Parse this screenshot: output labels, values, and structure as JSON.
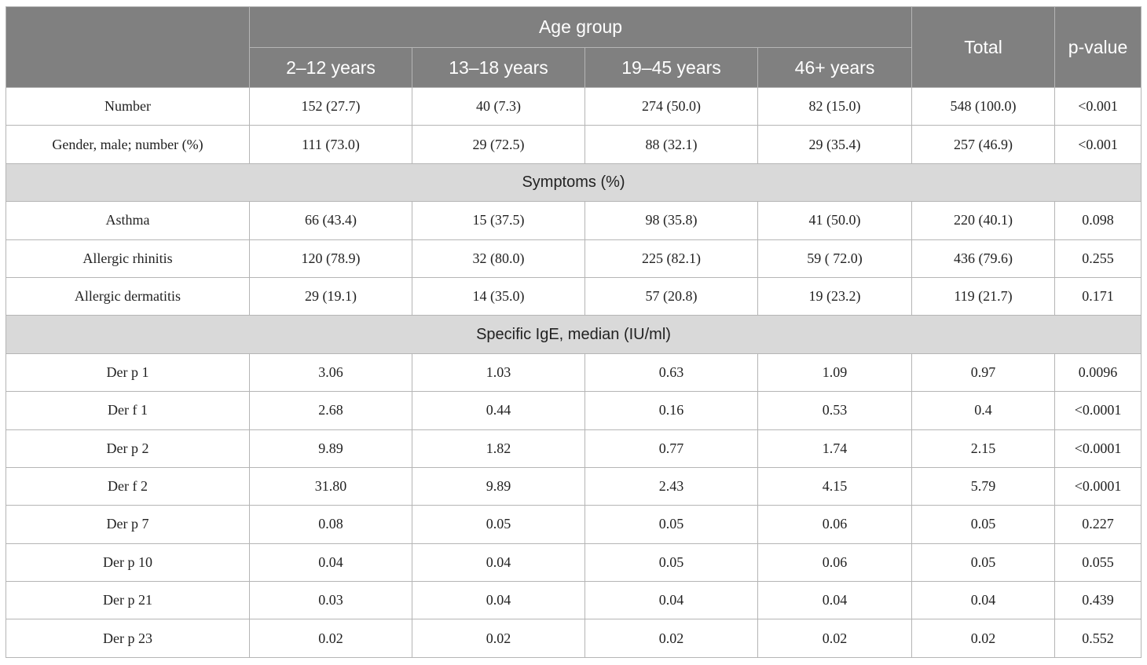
{
  "table": {
    "group_header": "Age group",
    "column_headers": [
      "2–12 years",
      "13–18 years",
      "19–45 years",
      "46+ years"
    ],
    "total_header": "Total",
    "p_header": "p-value",
    "blocks": [
      {
        "rows": [
          [
            "Number",
            "152 (27.7)",
            "40 (7.3)",
            "274 (50.0)",
            "82 (15.0)",
            "548 (100.0)",
            "<0.001"
          ],
          [
            "Gender, male; number (%)",
            "111 (73.0)",
            "29 (72.5)",
            "88 (32.1)",
            "29 (35.4)",
            "257 (46.9)",
            "<0.001"
          ]
        ]
      },
      {
        "title": "Symptoms (%)",
        "rows": [
          [
            "Asthma",
            "66 (43.4)",
            "15 (37.5)",
            "98 (35.8)",
            "41 (50.0)",
            "220 (40.1)",
            "0.098"
          ],
          [
            "Allergic rhinitis",
            "120 (78.9)",
            "32 (80.0)",
            "225 (82.1)",
            "59 ( 72.0)",
            "436 (79.6)",
            "0.255"
          ],
          [
            "Allergic dermatitis",
            "29 (19.1)",
            "14 (35.0)",
            "57 (20.8)",
            "19 (23.2)",
            "119 (21.7)",
            "0.171"
          ]
        ]
      },
      {
        "title": "Specific IgE, median (IU/ml)",
        "rows": [
          [
            "Der p 1",
            "3.06",
            "1.03",
            "0.63",
            "1.09",
            "0.97",
            "0.0096"
          ],
          [
            "Der f 1",
            "2.68",
            "0.44",
            "0.16",
            "0.53",
            "0.4",
            "<0.0001"
          ],
          [
            "Der p 2",
            "9.89",
            "1.82",
            "0.77",
            "1.74",
            "2.15",
            "<0.0001"
          ],
          [
            "Der f 2",
            "31.80",
            "9.89",
            "2.43",
            "4.15",
            "5.79",
            "<0.0001"
          ],
          [
            "Der p 7",
            "0.08",
            "0.05",
            "0.05",
            "0.06",
            "0.05",
            "0.227"
          ],
          [
            "Der p 10",
            "0.04",
            "0.04",
            "0.05",
            "0.06",
            "0.05",
            "0.055"
          ],
          [
            "Der p 21",
            "0.03",
            "0.04",
            "0.04",
            "0.04",
            "0.04",
            "0.439"
          ],
          [
            "Der p 23",
            "0.02",
            "0.02",
            "0.02",
            "0.02",
            "0.02",
            "0.552"
          ]
        ]
      }
    ]
  }
}
